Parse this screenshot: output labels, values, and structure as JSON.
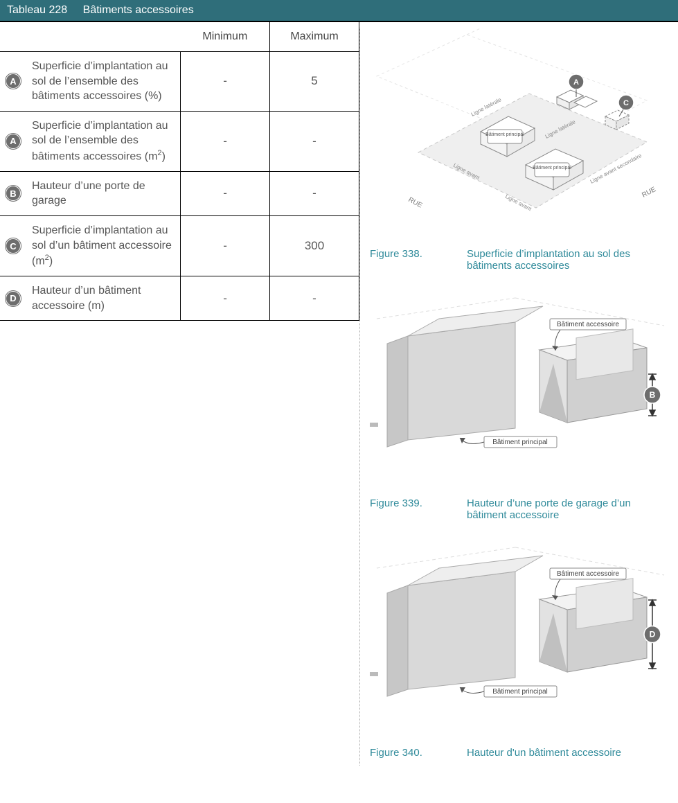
{
  "colors": {
    "header_bg": "#2f6e7a",
    "header_text": "#ffffff",
    "body_text": "#555555",
    "caption_color": "#2f8a9a",
    "badge_bg": "#6d6d6d",
    "diagram_fill": "#efefef",
    "diagram_stroke": "#b8b8b8",
    "label_box_fill": "#ffffff",
    "label_box_stroke": "#888888"
  },
  "title_bar": {
    "number": "Tableau 228",
    "title": "Bâtiments accessoires"
  },
  "table": {
    "headers": {
      "min": "Minimum",
      "max": "Maximum"
    },
    "rows": [
      {
        "badge": "A",
        "label_html": "Superficie d’implantation au sol de l’ensemble des bâtiments accessoires (%)",
        "min": "-",
        "max": "5"
      },
      {
        "badge": "A",
        "label_html": "Superficie d’implantation au sol de l’ensemble des bâtiments accessoires (m<span class='sup'>2</span>)",
        "min": "-",
        "max": "-"
      },
      {
        "badge": "B",
        "label_html": "Hauteur d’une porte de garage",
        "min": "-",
        "max": "-"
      },
      {
        "badge": "C",
        "label_html": "Superficie d’implantation au sol d’un bâtiment accessoire (m<span class='sup'>2</span>)",
        "min": "-",
        "max": "300"
      },
      {
        "badge": "D",
        "label_html": "Hauteur d’un bâtiment accessoire (m)",
        "min": "-",
        "max": "-"
      }
    ]
  },
  "figures": {
    "f338": {
      "number": "Figure 338.",
      "caption": "Superficie d’implantation au sol des bâtiments accessoires",
      "labels": {
        "rue": "RUE",
        "bat_principal": "Bâtiment principal",
        "ligne_avant": "Ligne avant",
        "ligne_laterale": "Ligne latérale",
        "ligne_avant_sec": "Ligne avant secondaire",
        "badge_a": "A",
        "badge_c": "C"
      }
    },
    "f339": {
      "number": "Figure 339.",
      "caption": "Hauteur d’une porte de garage d’un bâtiment accessoire",
      "labels": {
        "bat_accessoire": "Bâtiment accessoire",
        "bat_principal": "Bâtiment principal",
        "badge": "B"
      }
    },
    "f340": {
      "number": "Figure 340.",
      "caption": "Hauteur d'un bâtiment accessoire",
      "labels": {
        "bat_accessoire": "Bâtiment accessoire",
        "bat_principal": "Bâtiment principal",
        "badge": "D"
      }
    }
  }
}
